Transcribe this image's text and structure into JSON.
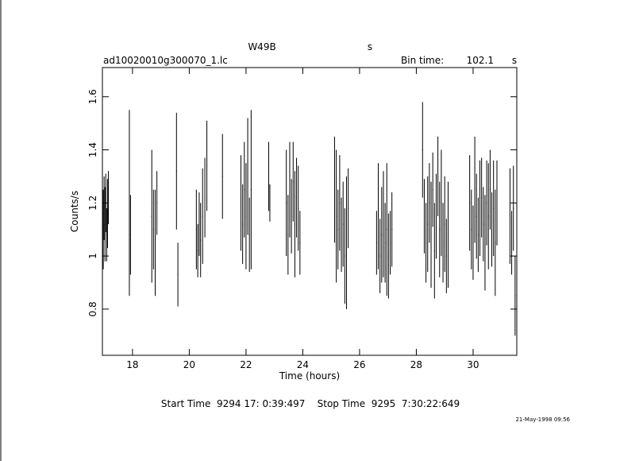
{
  "chart_data": {
    "type": "errorbar",
    "title": "W49B",
    "title_suffix": "s",
    "subtitle": "ad10020010g300070_1.lc",
    "bin_time_label": "Bin time:",
    "bin_time": 102.1,
    "bin_time_unit": "s",
    "xlabel": "Time (hours)",
    "ylabel": "Counts/s",
    "footer": "Start Time  9294 17: 0:39:497    Stop Time  9295  7:30:22:649",
    "date_stamp": "21-May-1998 09:56",
    "color": "#000000",
    "xlim": [
      16.94,
      31.54
    ],
    "ylim": [
      0.626,
      1.71
    ],
    "xticks": [
      18,
      20,
      22,
      24,
      26,
      28,
      30
    ],
    "yticks": [
      0.8,
      1,
      1.2,
      1.4,
      1.6
    ],
    "x": [
      16.97,
      17.0,
      17.03,
      17.06,
      17.09,
      17.12,
      17.15,
      17.89,
      17.93,
      18.68,
      18.74,
      18.8,
      18.86,
      19.55,
      19.6,
      20.25,
      20.3,
      20.35,
      20.4,
      20.47,
      20.55,
      20.62,
      21.17,
      21.82,
      21.88,
      21.94,
      22.0,
      22.06,
      22.12,
      22.18,
      22.8,
      22.84,
      23.42,
      23.48,
      23.54,
      23.6,
      23.66,
      23.72,
      23.78,
      23.84,
      23.9,
      25.12,
      25.18,
      25.24,
      25.3,
      25.36,
      25.42,
      25.48,
      25.54,
      25.6,
      26.6,
      26.66,
      26.72,
      26.78,
      26.84,
      26.9,
      26.96,
      27.02,
      27.08,
      27.14,
      28.22,
      28.28,
      28.34,
      28.4,
      28.46,
      28.52,
      28.58,
      28.64,
      28.7,
      28.76,
      28.82,
      28.88,
      28.94,
      29.0,
      29.06,
      29.12,
      29.88,
      29.94,
      30.0,
      30.06,
      30.12,
      30.18,
      30.24,
      30.3,
      30.36,
      30.42,
      30.48,
      30.54,
      30.6,
      30.66,
      30.72,
      30.78,
      30.84,
      31.3,
      31.36,
      31.42,
      31.48
    ],
    "values": [
      1.1,
      1.18,
      1.12,
      1.2,
      1.08,
      1.16,
      1.22,
      1.2,
      1.08,
      1.15,
      1.1,
      1.05,
      1.2,
      1.32,
      0.93,
      1.1,
      1.02,
      1.12,
      1.06,
      1.15,
      1.22,
      1.34,
      1.3,
      1.2,
      1.12,
      1.25,
      1.15,
      1.3,
      1.08,
      1.25,
      1.3,
      1.2,
      1.2,
      1.08,
      1.25,
      1.15,
      1.28,
      1.12,
      1.22,
      1.18,
      1.05,
      1.25,
      1.15,
      1.1,
      1.2,
      1.08,
      1.12,
      1.0,
      1.05,
      1.18,
      1.05,
      1.15,
      1.0,
      1.08,
      1.12,
      1.05,
      1.1,
      1.0,
      1.05,
      1.1,
      1.4,
      1.15,
      1.05,
      1.12,
      1.2,
      1.08,
      1.25,
      1.02,
      1.15,
      1.3,
      1.1,
      1.2,
      1.05,
      1.12,
      1.0,
      1.08,
      1.2,
      1.1,
      1.05,
      1.25,
      1.15,
      1.08,
      1.18,
      1.22,
      1.12,
      1.05,
      1.2,
      1.15,
      1.25,
      1.1,
      1.18,
      1.05,
      1.2,
      1.15,
      1.05,
      1.18,
      0.85
    ],
    "errors": [
      0.15,
      0.12,
      0.14,
      0.11,
      0.1,
      0.13,
      0.1,
      0.35,
      0.15,
      0.25,
      0.15,
      0.2,
      0.12,
      0.22,
      0.12,
      0.15,
      0.1,
      0.12,
      0.14,
      0.18,
      0.15,
      0.17,
      0.16,
      0.18,
      0.15,
      0.18,
      0.2,
      0.22,
      0.14,
      0.3,
      0.13,
      0.07,
      0.2,
      0.15,
      0.18,
      0.14,
      0.15,
      0.2,
      0.15,
      0.16,
      0.12,
      0.2,
      0.25,
      0.15,
      0.18,
      0.14,
      0.16,
      0.18,
      0.25,
      0.15,
      0.12,
      0.2,
      0.14,
      0.18,
      0.2,
      0.15,
      0.25,
      0.16,
      0.12,
      0.14,
      0.18,
      0.14,
      0.15,
      0.18,
      0.15,
      0.2,
      0.14,
      0.18,
      0.16,
      0.15,
      0.18,
      0.2,
      0.15,
      0.18,
      0.14,
      0.2,
      0.18,
      0.15,
      0.14,
      0.2,
      0.16,
      0.14,
      0.18,
      0.15,
      0.14,
      0.18,
      0.16,
      0.2,
      0.15,
      0.14,
      0.18,
      0.2,
      0.16,
      0.18,
      0.12,
      0.16,
      0.15
    ]
  }
}
